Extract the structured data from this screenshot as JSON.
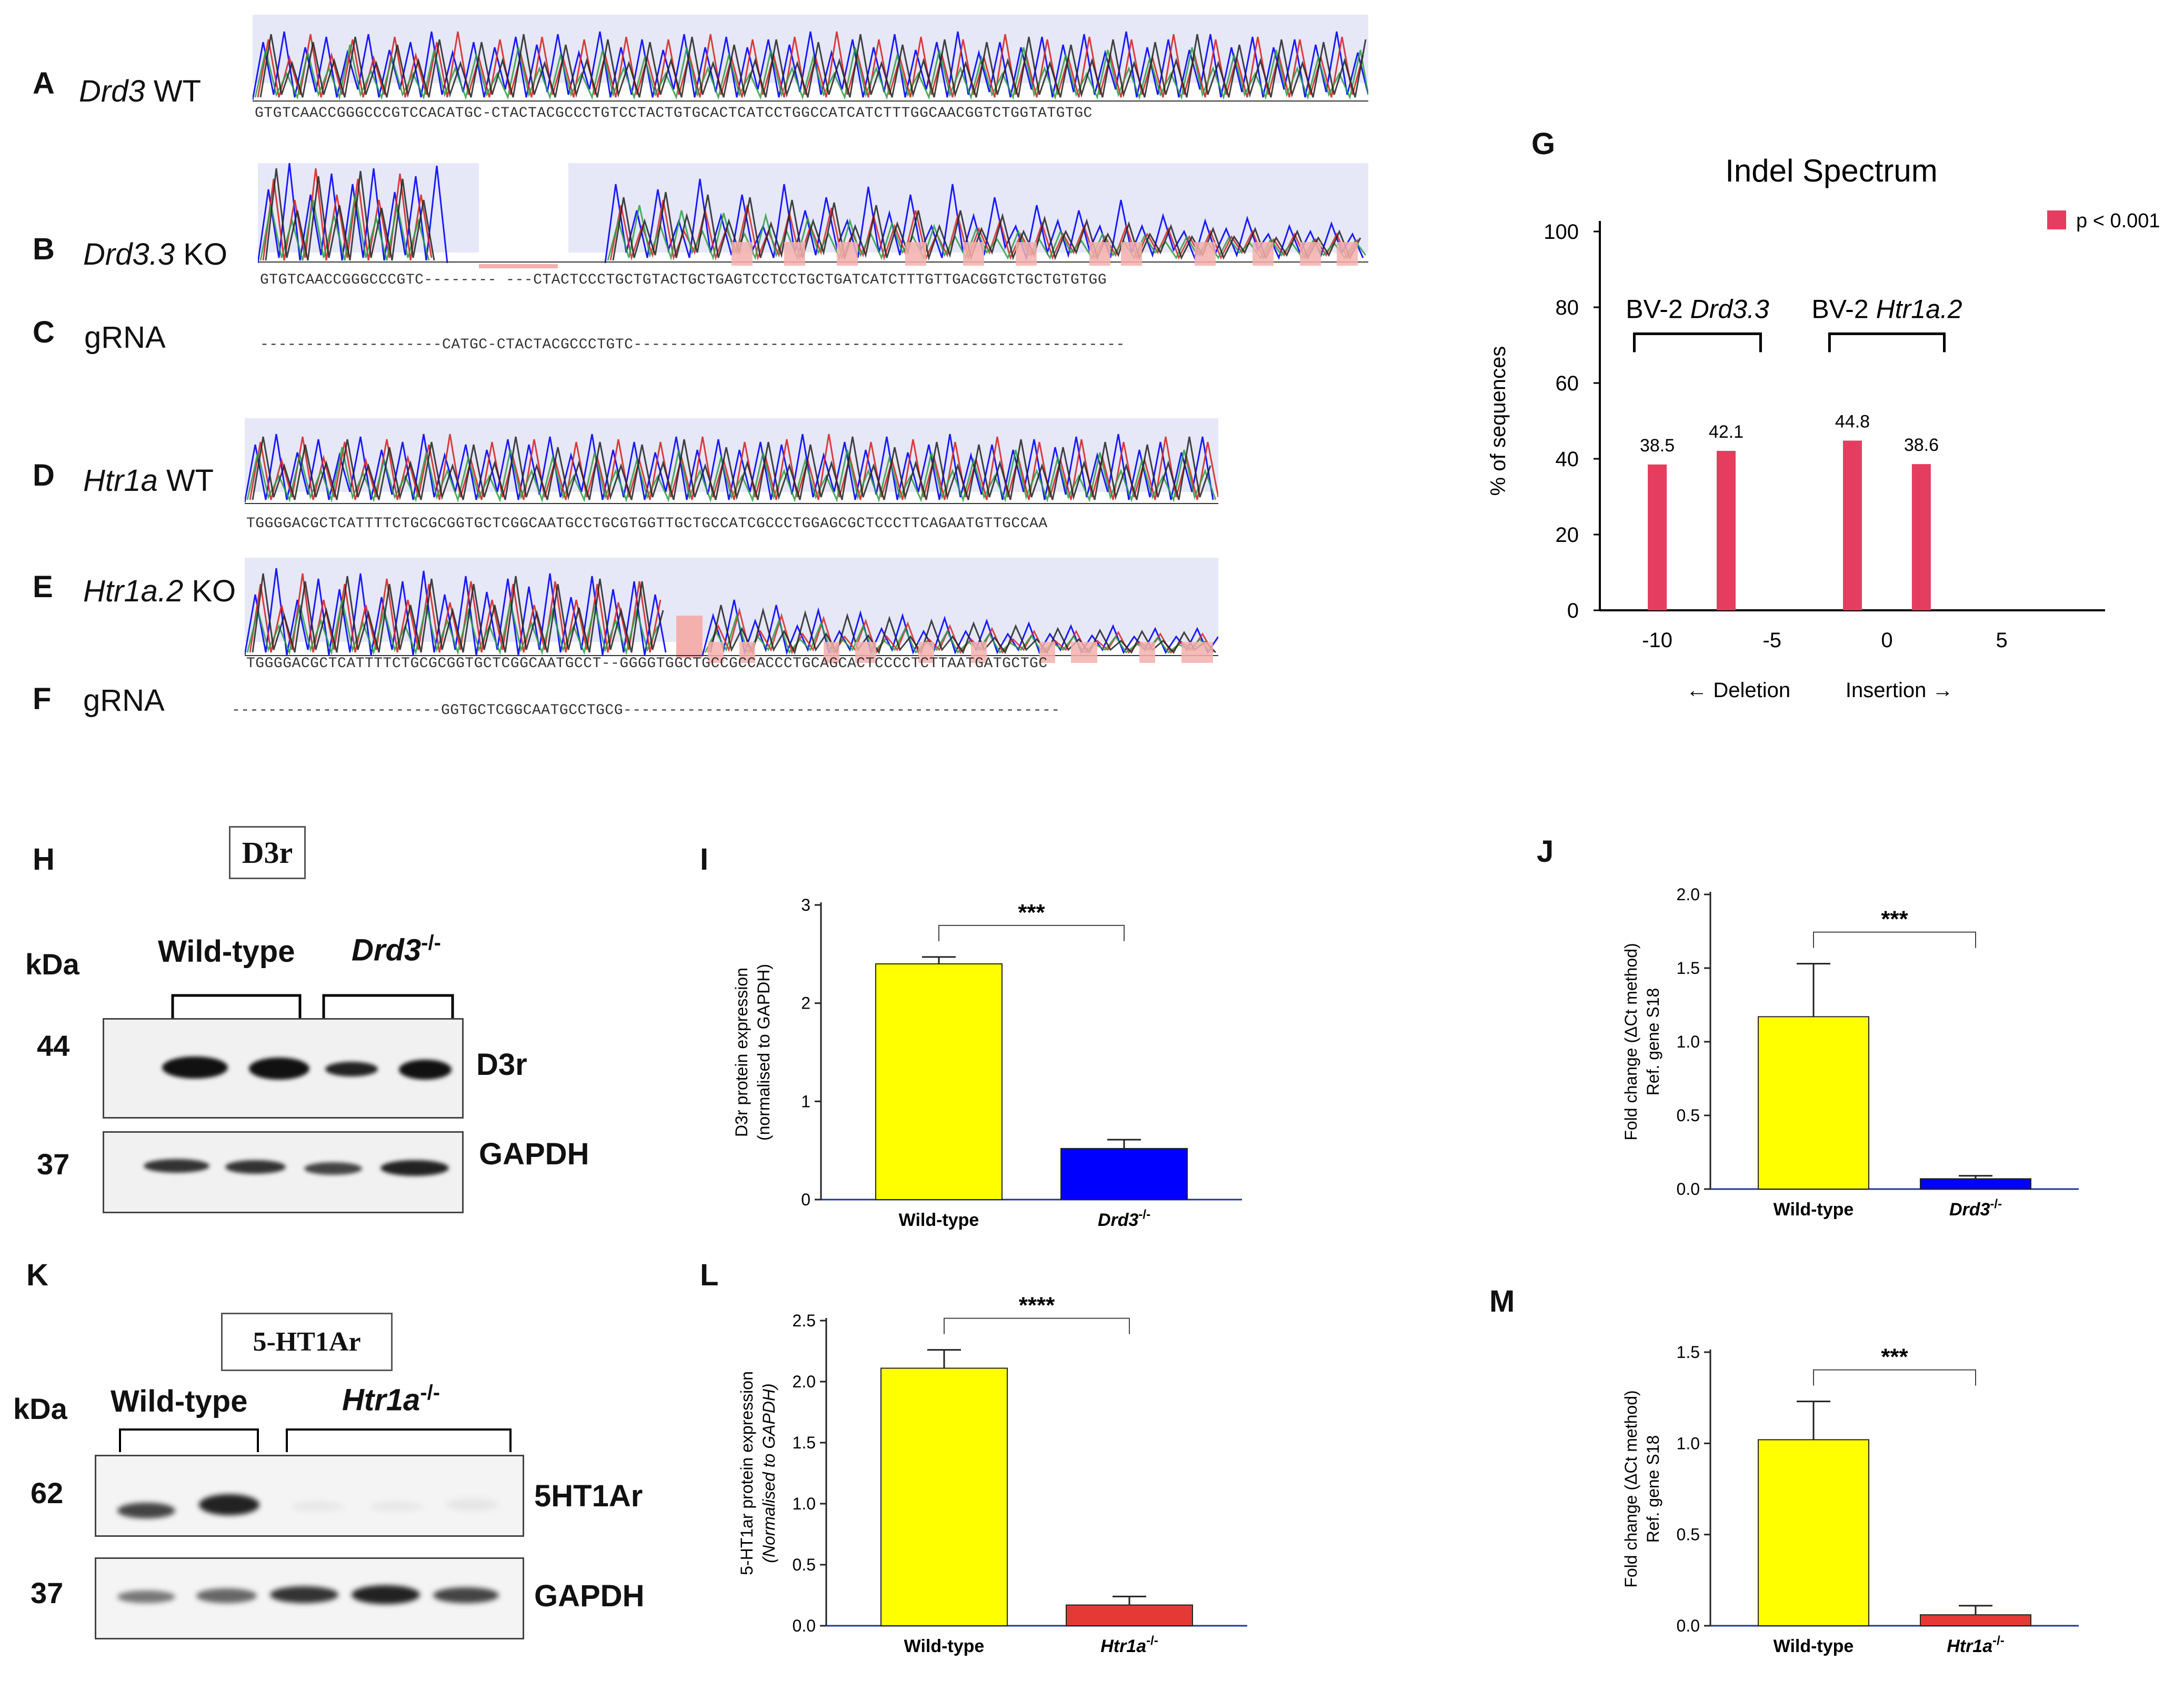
{
  "panels": {
    "A": {
      "letter": "A",
      "gene": "Drd3",
      "suffix": " WT",
      "seq": "GTGTCAACCGGGCCCGTCCACATGC-CTACTACGCCCTGTCCTACTGTGCACTCATCCTGGCCATCATCTTTGGCAACGGTCTGGTATGTGC"
    },
    "B": {
      "letter": "B",
      "gene": "Drd3.3",
      "suffix": " KO",
      "seq": "GTGTCAACCGGGCCCGTC-------- ---CTACTCCCTGCTGTACTGCTGAGTCCTCCTGCTGATCATCTTTGTTGACGGTCTGCTGTGTGG"
    },
    "C": {
      "letter": "C",
      "label": "gRNA",
      "seq": "--------------------CATGC-CTACTACGCCCTGTC------------------------------------------------------"
    },
    "D": {
      "letter": "D",
      "gene": "Htr1a",
      "suffix": " WT",
      "seq": "TGGGGACGCTCATTTTCTGCGCGGTGCTCGGCAATGCCTGCGTGGTTGCTGCCATCGCCCTGGAGCGCTCCCTTCAGAATGTTGCCAA"
    },
    "E": {
      "letter": "E",
      "gene": "Htr1a.2",
      "suffix": " KO",
      "seq": "TGGGGACGCTCATTTTCTGCGCGGTGCTCGGCAATGCCT--GGGGTGGCTGCCGCCACCCTGCAGCACTCCCCTCTTAATGATGCTGC"
    },
    "F": {
      "letter": "F",
      "label": "gRNA",
      "seq": "-----------------------GGTGCTCGGCAATGCCTGCG------------------------------------------------"
    },
    "H": {
      "letter": "H",
      "box": "D3r",
      "kda": "kDa",
      "group1": "Wild-type",
      "group2_main": "Drd3",
      "group2_sup": "-/-",
      "mw1": "44",
      "mw2": "37",
      "band1": "D3r",
      "band2": "GAPDH"
    },
    "K": {
      "letter": "K",
      "box": "5-HT1Ar",
      "kda": "kDa",
      "group1": "Wild-type",
      "group2_main": "Htr1a",
      "group2_sup": "-/-",
      "mw1": "62",
      "mw2": "37",
      "band1": "5HT1Ar",
      "band2": "GAPDH"
    }
  },
  "chart_data": [
    {
      "panel": "G",
      "type": "bar",
      "title": "Indel Spectrum",
      "ylabel": "% of sequences",
      "xlabel_left": "← Deletion",
      "xlabel_right": "Insertion →",
      "ylim": [
        0,
        100
      ],
      "yticks": [
        0,
        20,
        40,
        60,
        80,
        100
      ],
      "xlim": [
        -12.5,
        9.5
      ],
      "xticks": [
        -10,
        -5,
        0,
        5
      ],
      "legend": "p < 0.001",
      "color": "#e43d5f",
      "groups": [
        {
          "label": "BV-2 ",
          "gene": "Drd3.3",
          "range": [
            -11,
            -5.5
          ]
        },
        {
          "label": "BV-2 ",
          "gene": "Htr1a.2",
          "range": [
            -2.5,
            2.5
          ]
        }
      ],
      "points": [
        {
          "x": -10,
          "y": 38.5,
          "label": "38.5"
        },
        {
          "x": -7,
          "y": 42.1,
          "label": "42.1"
        },
        {
          "x": -1.5,
          "y": 44.8,
          "label": "44.8"
        },
        {
          "x": 1.5,
          "y": 38.6,
          "label": "38.6"
        }
      ]
    },
    {
      "panel": "I",
      "type": "bar",
      "ylabel": [
        "D3r protein expression",
        "(normalised to GAPDH)"
      ],
      "ylim": [
        0,
        3
      ],
      "yticks": [
        "0",
        "1",
        "2",
        "3"
      ],
      "categories": [
        "Wild-type",
        "Drd3"
      ],
      "cat_sup": [
        "",
        "-/-"
      ],
      "values": [
        2.4,
        0.52
      ],
      "errors": [
        0.07,
        0.09
      ],
      "colors": [
        "#ffff00",
        "#0000ff"
      ],
      "sig": "***"
    },
    {
      "panel": "J",
      "type": "bar",
      "ylabel": [
        "Fold change (ΔCt method)",
        "Ref. gene S18"
      ],
      "ylim": [
        0,
        2
      ],
      "yticks": [
        "0.0",
        "0.5",
        "1.0",
        "1.5",
        "2.0"
      ],
      "categories": [
        "Wild-type",
        "Drd3"
      ],
      "cat_sup": [
        "",
        "-/-"
      ],
      "values": [
        1.17,
        0.07
      ],
      "errors": [
        0.36,
        0.02
      ],
      "colors": [
        "#ffff00",
        "#0000ff"
      ],
      "sig": "***"
    },
    {
      "panel": "L",
      "type": "bar",
      "ylabel": [
        "5-HT1ar protein expression",
        "(Normalised to GAPDH)"
      ],
      "ylim": [
        0,
        2.5
      ],
      "yticks": [
        "0.0",
        "0.5",
        "1.0",
        "1.5",
        "2.0",
        "2.5"
      ],
      "categories": [
        "Wild-type",
        "Htr1a"
      ],
      "cat_sup": [
        "",
        "-/-"
      ],
      "values": [
        2.11,
        0.17
      ],
      "errors": [
        0.15,
        0.07
      ],
      "colors": [
        "#ffff00",
        "#e53935"
      ],
      "sig": "****"
    },
    {
      "panel": "M",
      "type": "bar",
      "ylabel": [
        "Fold change (ΔCt method)",
        "Ref. gene S18"
      ],
      "ylim": [
        0,
        1.5
      ],
      "yticks": [
        "0.0",
        "0.5",
        "1.0",
        "1.5"
      ],
      "categories": [
        "Wild-type",
        "Htr1a"
      ],
      "cat_sup": [
        "",
        "-/-"
      ],
      "values": [
        1.02,
        0.06
      ],
      "errors": [
        0.21,
        0.05
      ],
      "colors": [
        "#ffff00",
        "#e53935"
      ],
      "sig": "***"
    }
  ]
}
